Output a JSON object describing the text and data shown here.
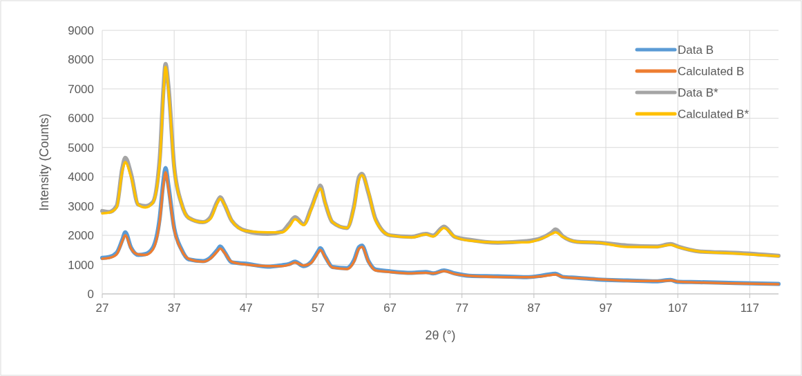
{
  "chart_data": {
    "type": "line",
    "xlabel": "2θ (°)",
    "ylabel": "Intensity (Counts)",
    "xlim": [
      27,
      121
    ],
    "ylim": [
      0,
      9000
    ],
    "xticks": [
      27,
      37,
      47,
      57,
      67,
      77,
      87,
      97,
      107,
      117
    ],
    "yticks": [
      0,
      1000,
      2000,
      3000,
      4000,
      5000,
      6000,
      7000,
      8000,
      9000
    ],
    "grid": true,
    "legend": "top right",
    "marker": "none",
    "line_style": "solid",
    "x": [
      27,
      28,
      29,
      29.8,
      30.2,
      31,
      32,
      33,
      34,
      35,
      35.5,
      35.8,
      36.2,
      37,
      38,
      39,
      41,
      42,
      43,
      43.4,
      44,
      45,
      47,
      50,
      52,
      53,
      53.8,
      55,
      56,
      57,
      57.3,
      58,
      59,
      61,
      62,
      62.7,
      63.1,
      64,
      65,
      67,
      70,
      72,
      73,
      74.5,
      76,
      78,
      82,
      86,
      88,
      89.5,
      90,
      91,
      93,
      96,
      100,
      104,
      106,
      107,
      110,
      115,
      121
    ],
    "series": [
      {
        "name": "Data B",
        "color": "#5b9bd5",
        "values": [
          1230,
          1260,
          1400,
          1850,
          2100,
          1580,
          1330,
          1360,
          1560,
          2620,
          3850,
          4300,
          3700,
          2250,
          1530,
          1180,
          1120,
          1230,
          1500,
          1620,
          1430,
          1080,
          1030,
          930,
          980,
          1020,
          1100,
          950,
          1080,
          1450,
          1560,
          1270,
          920,
          880,
          1150,
          1600,
          1650,
          1120,
          830,
          770,
          720,
          750,
          700,
          800,
          700,
          620,
          600,
          570,
          620,
          680,
          690,
          580,
          550,
          490,
          460,
          430,
          480,
          410,
          400,
          370,
          340
        ]
      },
      {
        "name": "Calculated B",
        "color": "#ed7d31",
        "values": [
          1200,
          1230,
          1350,
          1800,
          2000,
          1550,
          1350,
          1330,
          1500,
          2500,
          3700,
          4150,
          3600,
          2200,
          1500,
          1200,
          1100,
          1200,
          1450,
          1550,
          1400,
          1100,
          1000,
          950,
          950,
          1000,
          1070,
          970,
          1050,
          1400,
          1500,
          1250,
          900,
          850,
          1100,
          1550,
          1600,
          1100,
          800,
          750,
          700,
          720,
          700,
          780,
          680,
          620,
          580,
          570,
          600,
          650,
          660,
          580,
          540,
          500,
          450,
          440,
          460,
          420,
          390,
          360,
          330
        ]
      },
      {
        "name": "Data B*",
        "color": "#a5a5a5",
        "values": [
          2830,
          2800,
          3000,
          4300,
          4650,
          4100,
          3050,
          3000,
          3120,
          4650,
          6950,
          7850,
          7100,
          4350,
          3100,
          2600,
          2450,
          2600,
          3150,
          3300,
          3050,
          2500,
          2150,
          2050,
          2130,
          2400,
          2620,
          2380,
          2900,
          3550,
          3700,
          3100,
          2450,
          2250,
          3000,
          4000,
          4100,
          3450,
          2550,
          2000,
          1950,
          2050,
          1990,
          2300,
          1950,
          1850,
          1750,
          1800,
          1900,
          2100,
          2200,
          1970,
          1780,
          1750,
          1650,
          1620,
          1700,
          1620,
          1450,
          1400,
          1300
        ]
      },
      {
        "name": "Calculated B*",
        "color": "#ffc000",
        "values": [
          2750,
          2780,
          2950,
          4200,
          4500,
          4000,
          3050,
          2950,
          3100,
          4500,
          6800,
          7750,
          7000,
          4300,
          3100,
          2600,
          2450,
          2550,
          3100,
          3250,
          3050,
          2500,
          2150,
          2100,
          2100,
          2300,
          2550,
          2350,
          2850,
          3500,
          3600,
          3100,
          2450,
          2250,
          2950,
          3900,
          4050,
          3500,
          2500,
          2000,
          1930,
          2030,
          1960,
          2250,
          1950,
          1820,
          1760,
          1760,
          1880,
          2050,
          2100,
          1950,
          1780,
          1750,
          1600,
          1600,
          1680,
          1600,
          1450,
          1380,
          1290
        ]
      }
    ]
  }
}
